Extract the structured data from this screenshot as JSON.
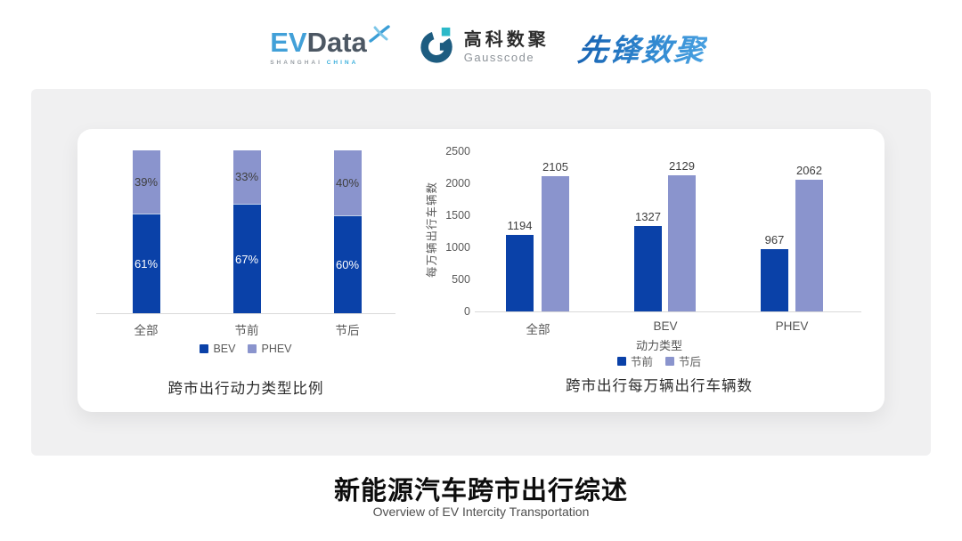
{
  "header": {
    "evdata": {
      "ev": "EV",
      "data": "Data",
      "subtext_left": "SHANGHAI",
      "subtext_right": "CHINA"
    },
    "gausscode": {
      "name_cn": "高科数聚",
      "name_en": "Gausscode"
    },
    "pioneer": {
      "name": "先锋数聚"
    }
  },
  "chart_data": [
    {
      "type": "bar",
      "variant": "stacked-100",
      "title": "跨市出行动力类型比例",
      "categories": [
        "全部",
        "节前",
        "节后"
      ],
      "series": [
        {
          "name": "BEV",
          "values": [
            61,
            67,
            60
          ],
          "color": "#0a41a8",
          "label_color": "#ffffff"
        },
        {
          "name": "PHEV",
          "values": [
            39,
            33,
            40
          ],
          "color": "#8a94cd",
          "label_color": "#3f3f3f"
        }
      ],
      "label_suffix": "%",
      "legend_position": "bottom",
      "grid": false
    },
    {
      "type": "bar",
      "variant": "grouped",
      "title": "跨市出行每万辆出行车辆数",
      "categories": [
        "全部",
        "BEV",
        "PHEV"
      ],
      "xlabel": "动力类型",
      "ylabel": "每万辆出行车辆数",
      "ylim": [
        0,
        2500
      ],
      "yticks": [
        0,
        500,
        1000,
        1500,
        2000,
        2500
      ],
      "series": [
        {
          "name": "节前",
          "values": [
            1194,
            1327,
            967
          ],
          "color": "#0a41a8"
        },
        {
          "name": "节后",
          "values": [
            2105,
            2129,
            2062
          ],
          "color": "#8a94cd"
        }
      ],
      "label_suffix": "",
      "legend_position": "bottom",
      "grid": false
    }
  ],
  "footer": {
    "title": "新能源汽车跨市出行综述",
    "subtitle": "Overview of EV Intercity Transportation"
  },
  "colors": {
    "series_dark": "#0a41a8",
    "series_light": "#8a94cd",
    "axis_line": "#d9d9d9",
    "card_bg": "#f0f0f1",
    "inner_card_bg": "#ffffff"
  }
}
